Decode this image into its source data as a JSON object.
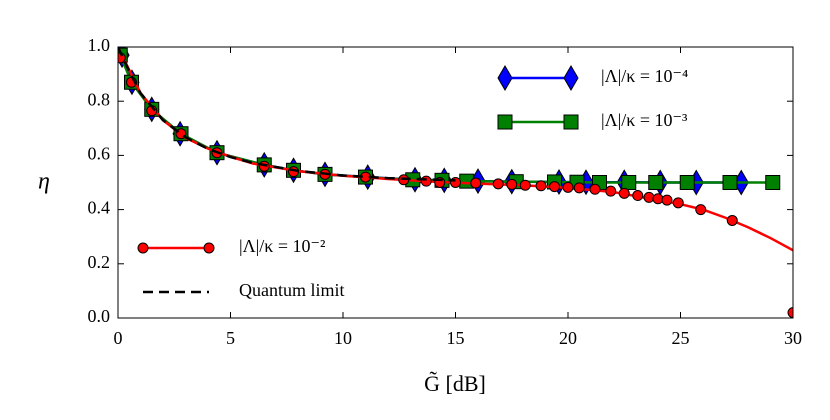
{
  "chart_data": {
    "type": "line",
    "xlabel": "G̃ [dB]",
    "ylabel": "η",
    "xlim": [
      0,
      30
    ],
    "ylim": [
      0,
      1.0
    ],
    "xticks": [
      0,
      5,
      10,
      15,
      20,
      25,
      30
    ],
    "yticks": [
      {
        "value": 0,
        "label": "0.0"
      },
      0.2,
      0.4,
      0.6,
      0.8,
      {
        "value": 1,
        "label": "1.0"
      }
    ],
    "series": [
      {
        "name": "|Λ|/κ = 10⁻⁴",
        "color": "#0000ff",
        "marker": "diamond",
        "legend": "upper right",
        "x": [
          0.18,
          0.62,
          1.5,
          2.76,
          4.4,
          6.5,
          7.8,
          9.2,
          11.1,
          13.2,
          14.5,
          16,
          17.5,
          19.6,
          20.8,
          22.5,
          24.1,
          25.7,
          27.7
        ],
        "values": [
          0.97,
          0.87,
          0.77,
          0.68,
          0.61,
          0.565,
          0.545,
          0.53,
          0.52,
          0.51,
          0.508,
          0.505,
          0.503,
          0.502,
          0.501,
          0.501,
          0.5,
          0.5,
          0.5
        ]
      },
      {
        "name": "|Λ|/κ = 10⁻³",
        "color": "#008000",
        "marker": "square",
        "legend": "upper right",
        "x": [
          0.1,
          0.6,
          1.5,
          2.8,
          4.4,
          6.5,
          7.8,
          9.2,
          11,
          13.1,
          14.4,
          15.5,
          17.7,
          19.4,
          20.4,
          21.4,
          22.7,
          23.9,
          25.3,
          27.2,
          29.1
        ],
        "values": [
          0.97,
          0.87,
          0.77,
          0.68,
          0.61,
          0.565,
          0.545,
          0.53,
          0.52,
          0.51,
          0.508,
          0.505,
          0.503,
          0.502,
          0.501,
          0.5,
          0.5,
          0.5,
          0.5,
          0.5,
          0.5
        ]
      },
      {
        "name": "|Λ|/κ = 10⁻²",
        "color": "#ff0000",
        "marker": "circle",
        "legend": "lower left",
        "x": [
          0.1,
          0.6,
          1.5,
          2.8,
          4.4,
          6.5,
          7.8,
          9.2,
          11,
          12.7,
          13.7,
          14.3,
          15,
          15.9,
          16.9,
          17.5,
          18.1,
          18.8,
          19.4,
          20,
          20.5,
          21.2,
          21.9,
          22.5,
          23.1,
          23.6,
          24,
          24.4,
          24.9,
          25.9,
          27.3,
          30
        ],
        "values": [
          0.96,
          0.87,
          0.765,
          0.68,
          0.61,
          0.56,
          0.54,
          0.53,
          0.52,
          0.51,
          0.505,
          0.5,
          0.5,
          0.498,
          0.495,
          0.493,
          0.49,
          0.488,
          0.485,
          0.482,
          0.48,
          0.475,
          0.468,
          0.46,
          0.452,
          0.445,
          0.44,
          0.435,
          0.425,
          0.4,
          0.36,
          0.02
        ],
        "curve_x": [
          0,
          1,
          2,
          3,
          4,
          5,
          6,
          8,
          10,
          12,
          14,
          16,
          18,
          20,
          22,
          24,
          25,
          26,
          27,
          28,
          29,
          30
        ],
        "curve_values": [
          1,
          0.83,
          0.73,
          0.665,
          0.625,
          0.595,
          0.57,
          0.542,
          0.525,
          0.513,
          0.503,
          0.496,
          0.49,
          0.48,
          0.465,
          0.435,
          0.42,
          0.4,
          0.37,
          0.335,
          0.295,
          0.25
        ]
      },
      {
        "name": "Quantum limit",
        "color": "#000000",
        "dashed": true,
        "legend": "lower left",
        "x": [
          0,
          0.5,
          1,
          2,
          3,
          4,
          5,
          6,
          8,
          10,
          12,
          15
        ],
        "values": [
          1,
          0.91,
          0.83,
          0.73,
          0.667,
          0.624,
          0.594,
          0.572,
          0.543,
          0.526,
          0.516,
          0.508
        ]
      }
    ]
  }
}
